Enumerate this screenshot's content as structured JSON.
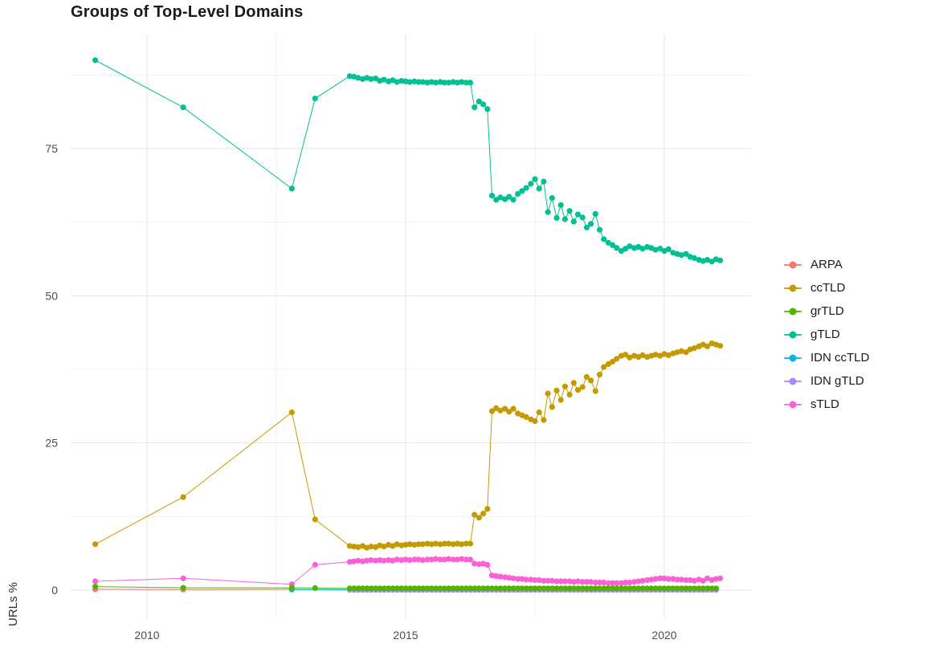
{
  "chart_data": {
    "type": "line",
    "title": "Groups of Top-Level Domains",
    "xlabel": "",
    "ylabel": "URLs %",
    "xlim": [
      2008.5,
      2021.8
    ],
    "ylim": [
      -5,
      94
    ],
    "x_ticks": [
      2010,
      2015,
      2020
    ],
    "x_minor": [
      2012.5,
      2017.5
    ],
    "y_ticks": [
      0,
      25,
      50,
      75
    ],
    "y_minor": [
      12.5,
      37.5,
      62.5,
      87.5
    ],
    "grid": true,
    "legend_position": "right",
    "colors": {
      "ARPA": "#F8766D",
      "ccTLD": "#C49A00",
      "grTLD": "#53B400",
      "gTLD": "#00C094",
      "IDN ccTLD": "#00B6EB",
      "IDN gTLD": "#A58AFF",
      "sTLD": "#FB61D7"
    },
    "series": [
      {
        "name": "ARPA",
        "color": "#F8766D",
        "z": 1,
        "points": [
          [
            2009.0,
            0.15
          ],
          [
            2010.7,
            0.1
          ],
          [
            2012.8,
            0.15
          ]
        ],
        "flat": {
          "from": 2013.92,
          "to": 2021.08,
          "step": 0.0833,
          "y": 0.1
        }
      },
      {
        "name": "ccTLD",
        "color": "#C49A00",
        "z": 4,
        "points": [
          [
            2009.0,
            7.8
          ],
          [
            2010.7,
            15.8
          ],
          [
            2012.8,
            30.2
          ],
          [
            2013.25,
            12.0
          ],
          [
            2013.92,
            7.5
          ],
          [
            2014.0,
            7.4
          ],
          [
            2014.08,
            7.3
          ],
          [
            2014.17,
            7.5
          ],
          [
            2014.25,
            7.2
          ],
          [
            2014.33,
            7.4
          ],
          [
            2014.42,
            7.3
          ],
          [
            2014.5,
            7.6
          ],
          [
            2014.58,
            7.4
          ],
          [
            2014.67,
            7.7
          ],
          [
            2014.75,
            7.5
          ],
          [
            2014.83,
            7.8
          ],
          [
            2014.92,
            7.6
          ],
          [
            2015.0,
            7.7
          ],
          [
            2015.08,
            7.8
          ],
          [
            2015.17,
            7.7
          ],
          [
            2015.25,
            7.8
          ],
          [
            2015.33,
            7.8
          ],
          [
            2015.42,
            7.9
          ],
          [
            2015.5,
            7.8
          ],
          [
            2015.58,
            7.9
          ],
          [
            2015.67,
            7.8
          ],
          [
            2015.75,
            7.9
          ],
          [
            2015.83,
            7.9
          ],
          [
            2015.92,
            7.8
          ],
          [
            2016.0,
            7.9
          ],
          [
            2016.08,
            7.8
          ],
          [
            2016.17,
            7.9
          ],
          [
            2016.25,
            7.9
          ],
          [
            2016.33,
            12.8
          ],
          [
            2016.42,
            12.3
          ],
          [
            2016.5,
            13.0
          ],
          [
            2016.58,
            13.8
          ],
          [
            2016.67,
            30.4
          ],
          [
            2016.75,
            30.9
          ],
          [
            2016.83,
            30.5
          ],
          [
            2016.92,
            30.8
          ],
          [
            2017.0,
            30.3
          ],
          [
            2017.08,
            30.8
          ],
          [
            2017.17,
            30.0
          ],
          [
            2017.25,
            29.7
          ],
          [
            2017.33,
            29.4
          ],
          [
            2017.42,
            29.0
          ],
          [
            2017.5,
            28.7
          ],
          [
            2017.58,
            30.2
          ],
          [
            2017.67,
            28.9
          ],
          [
            2017.75,
            33.4
          ],
          [
            2017.83,
            31.1
          ],
          [
            2017.92,
            33.9
          ],
          [
            2018.0,
            32.3
          ],
          [
            2018.08,
            34.6
          ],
          [
            2018.17,
            33.2
          ],
          [
            2018.25,
            35.2
          ],
          [
            2018.33,
            34.0
          ],
          [
            2018.42,
            34.5
          ],
          [
            2018.5,
            36.2
          ],
          [
            2018.58,
            35.6
          ],
          [
            2018.67,
            33.8
          ],
          [
            2018.75,
            36.6
          ],
          [
            2018.83,
            37.9
          ],
          [
            2018.92,
            38.4
          ],
          [
            2019.0,
            38.8
          ],
          [
            2019.08,
            39.3
          ],
          [
            2019.17,
            39.8
          ],
          [
            2019.25,
            40.0
          ],
          [
            2019.33,
            39.5
          ],
          [
            2019.42,
            39.8
          ],
          [
            2019.5,
            39.6
          ],
          [
            2019.58,
            39.9
          ],
          [
            2019.67,
            39.6
          ],
          [
            2019.75,
            39.8
          ],
          [
            2019.83,
            40.0
          ],
          [
            2019.92,
            39.8
          ],
          [
            2020.0,
            40.1
          ],
          [
            2020.08,
            39.9
          ],
          [
            2020.17,
            40.2
          ],
          [
            2020.25,
            40.4
          ],
          [
            2020.33,
            40.6
          ],
          [
            2020.42,
            40.4
          ],
          [
            2020.5,
            40.9
          ],
          [
            2020.58,
            41.1
          ],
          [
            2020.67,
            41.4
          ],
          [
            2020.75,
            41.7
          ],
          [
            2020.83,
            41.4
          ],
          [
            2020.92,
            41.9
          ],
          [
            2021.0,
            41.7
          ],
          [
            2021.08,
            41.5
          ]
        ]
      },
      {
        "name": "grTLD",
        "color": "#53B400",
        "z": 7,
        "points": [
          [
            2009.0,
            0.6
          ],
          [
            2010.7,
            0.4
          ],
          [
            2012.8,
            0.4
          ],
          [
            2013.25,
            0.35
          ]
        ],
        "flat": {
          "from": 2013.92,
          "to": 2021.08,
          "step": 0.0833,
          "y": 0.3
        }
      },
      {
        "name": "gTLD",
        "color": "#00C094",
        "z": 5,
        "points": [
          [
            2009.0,
            90.0
          ],
          [
            2010.7,
            82.0
          ],
          [
            2012.8,
            68.2
          ],
          [
            2013.25,
            83.5
          ],
          [
            2013.92,
            87.3
          ],
          [
            2014.0,
            87.2
          ],
          [
            2014.08,
            87.0
          ],
          [
            2014.17,
            86.8
          ],
          [
            2014.25,
            87.0
          ],
          [
            2014.33,
            86.8
          ],
          [
            2014.42,
            86.9
          ],
          [
            2014.5,
            86.5
          ],
          [
            2014.58,
            86.7
          ],
          [
            2014.67,
            86.4
          ],
          [
            2014.75,
            86.6
          ],
          [
            2014.83,
            86.3
          ],
          [
            2014.92,
            86.5
          ],
          [
            2015.0,
            86.4
          ],
          [
            2015.08,
            86.3
          ],
          [
            2015.17,
            86.4
          ],
          [
            2015.25,
            86.3
          ],
          [
            2015.33,
            86.3
          ],
          [
            2015.42,
            86.2
          ],
          [
            2015.5,
            86.3
          ],
          [
            2015.58,
            86.2
          ],
          [
            2015.67,
            86.3
          ],
          [
            2015.75,
            86.2
          ],
          [
            2015.83,
            86.2
          ],
          [
            2015.92,
            86.3
          ],
          [
            2016.0,
            86.2
          ],
          [
            2016.08,
            86.3
          ],
          [
            2016.17,
            86.2
          ],
          [
            2016.25,
            86.2
          ],
          [
            2016.33,
            82.0
          ],
          [
            2016.42,
            83.0
          ],
          [
            2016.5,
            82.5
          ],
          [
            2016.58,
            81.7
          ],
          [
            2016.67,
            67.0
          ],
          [
            2016.75,
            66.3
          ],
          [
            2016.83,
            66.7
          ],
          [
            2016.92,
            66.4
          ],
          [
            2017.0,
            66.8
          ],
          [
            2017.08,
            66.3
          ],
          [
            2017.17,
            67.3
          ],
          [
            2017.25,
            67.8
          ],
          [
            2017.33,
            68.3
          ],
          [
            2017.42,
            69.0
          ],
          [
            2017.5,
            69.8
          ],
          [
            2017.58,
            68.2
          ],
          [
            2017.67,
            69.4
          ],
          [
            2017.75,
            64.2
          ],
          [
            2017.83,
            66.6
          ],
          [
            2017.92,
            63.2
          ],
          [
            2018.0,
            65.4
          ],
          [
            2018.08,
            63.0
          ],
          [
            2018.17,
            64.4
          ],
          [
            2018.25,
            62.6
          ],
          [
            2018.33,
            63.8
          ],
          [
            2018.42,
            63.3
          ],
          [
            2018.5,
            61.6
          ],
          [
            2018.58,
            62.2
          ],
          [
            2018.67,
            63.9
          ],
          [
            2018.75,
            61.2
          ],
          [
            2018.83,
            59.6
          ],
          [
            2018.92,
            59.0
          ],
          [
            2019.0,
            58.6
          ],
          [
            2019.08,
            58.1
          ],
          [
            2019.17,
            57.6
          ],
          [
            2019.25,
            58.0
          ],
          [
            2019.33,
            58.4
          ],
          [
            2019.42,
            58.1
          ],
          [
            2019.5,
            58.3
          ],
          [
            2019.58,
            58.0
          ],
          [
            2019.67,
            58.3
          ],
          [
            2019.75,
            58.1
          ],
          [
            2019.83,
            57.8
          ],
          [
            2019.92,
            58.0
          ],
          [
            2020.0,
            57.6
          ],
          [
            2020.08,
            57.9
          ],
          [
            2020.17,
            57.3
          ],
          [
            2020.25,
            57.1
          ],
          [
            2020.33,
            56.9
          ],
          [
            2020.42,
            57.1
          ],
          [
            2020.5,
            56.6
          ],
          [
            2020.58,
            56.4
          ],
          [
            2020.67,
            56.1
          ],
          [
            2020.75,
            55.9
          ],
          [
            2020.83,
            56.1
          ],
          [
            2020.92,
            55.8
          ],
          [
            2021.0,
            56.2
          ],
          [
            2021.08,
            56.0
          ]
        ]
      },
      {
        "name": "IDN ccTLD",
        "color": "#00B6EB",
        "z": 2,
        "points": [
          [
            2012.8,
            0.1
          ]
        ],
        "flat": {
          "from": 2013.92,
          "to": 2021.08,
          "step": 0.0833,
          "y": 0.07
        }
      },
      {
        "name": "IDN gTLD",
        "color": "#A58AFF",
        "z": 3,
        "points": [],
        "flat": {
          "from": 2013.92,
          "to": 2021.08,
          "step": 0.0833,
          "y": 0.04
        }
      },
      {
        "name": "sTLD",
        "color": "#FB61D7",
        "z": 6,
        "points": [
          [
            2009.0,
            1.5
          ],
          [
            2010.7,
            2.0
          ],
          [
            2012.8,
            1.0
          ],
          [
            2013.25,
            4.3
          ],
          [
            2013.92,
            4.8
          ],
          [
            2014.0,
            4.9
          ],
          [
            2014.08,
            5.0
          ],
          [
            2014.17,
            4.9
          ],
          [
            2014.25,
            5.0
          ],
          [
            2014.33,
            5.1
          ],
          [
            2014.42,
            5.0
          ],
          [
            2014.5,
            5.1
          ],
          [
            2014.58,
            5.0
          ],
          [
            2014.67,
            5.1
          ],
          [
            2014.75,
            5.0
          ],
          [
            2014.83,
            5.2
          ],
          [
            2014.92,
            5.1
          ],
          [
            2015.0,
            5.2
          ],
          [
            2015.08,
            5.1
          ],
          [
            2015.17,
            5.2
          ],
          [
            2015.25,
            5.2
          ],
          [
            2015.33,
            5.1
          ],
          [
            2015.42,
            5.2
          ],
          [
            2015.5,
            5.2
          ],
          [
            2015.58,
            5.3
          ],
          [
            2015.67,
            5.2
          ],
          [
            2015.75,
            5.2
          ],
          [
            2015.83,
            5.3
          ],
          [
            2015.92,
            5.2
          ],
          [
            2016.0,
            5.2
          ],
          [
            2016.08,
            5.3
          ],
          [
            2016.17,
            5.2
          ],
          [
            2016.25,
            5.2
          ],
          [
            2016.33,
            4.5
          ],
          [
            2016.42,
            4.4
          ],
          [
            2016.5,
            4.5
          ],
          [
            2016.58,
            4.3
          ],
          [
            2016.67,
            2.5
          ],
          [
            2016.75,
            2.4
          ],
          [
            2016.83,
            2.3
          ],
          [
            2016.92,
            2.2
          ],
          [
            2017.0,
            2.1
          ],
          [
            2017.08,
            2.0
          ],
          [
            2017.17,
            1.9
          ],
          [
            2017.25,
            1.9
          ],
          [
            2017.33,
            1.8
          ],
          [
            2017.42,
            1.8
          ],
          [
            2017.5,
            1.7
          ],
          [
            2017.58,
            1.7
          ],
          [
            2017.67,
            1.6
          ],
          [
            2017.75,
            1.6
          ],
          [
            2017.83,
            1.6
          ],
          [
            2017.92,
            1.5
          ],
          [
            2018.0,
            1.5
          ],
          [
            2018.08,
            1.5
          ],
          [
            2018.17,
            1.5
          ],
          [
            2018.25,
            1.4
          ],
          [
            2018.33,
            1.5
          ],
          [
            2018.42,
            1.4
          ],
          [
            2018.5,
            1.4
          ],
          [
            2018.58,
            1.4
          ],
          [
            2018.67,
            1.3
          ],
          [
            2018.75,
            1.3
          ],
          [
            2018.83,
            1.3
          ],
          [
            2018.92,
            1.2
          ],
          [
            2019.0,
            1.2
          ],
          [
            2019.08,
            1.2
          ],
          [
            2019.17,
            1.2
          ],
          [
            2019.25,
            1.3
          ],
          [
            2019.33,
            1.3
          ],
          [
            2019.42,
            1.4
          ],
          [
            2019.5,
            1.5
          ],
          [
            2019.58,
            1.6
          ],
          [
            2019.67,
            1.7
          ],
          [
            2019.75,
            1.8
          ],
          [
            2019.83,
            1.9
          ],
          [
            2019.92,
            2.0
          ],
          [
            2020.0,
            2.0
          ],
          [
            2020.08,
            1.9
          ],
          [
            2020.17,
            1.9
          ],
          [
            2020.25,
            1.8
          ],
          [
            2020.33,
            1.8
          ],
          [
            2020.42,
            1.7
          ],
          [
            2020.5,
            1.7
          ],
          [
            2020.58,
            1.6
          ],
          [
            2020.67,
            1.8
          ],
          [
            2020.75,
            1.6
          ],
          [
            2020.83,
            2.0
          ],
          [
            2020.92,
            1.7
          ],
          [
            2021.0,
            1.9
          ],
          [
            2021.08,
            2.0
          ]
        ]
      }
    ]
  }
}
